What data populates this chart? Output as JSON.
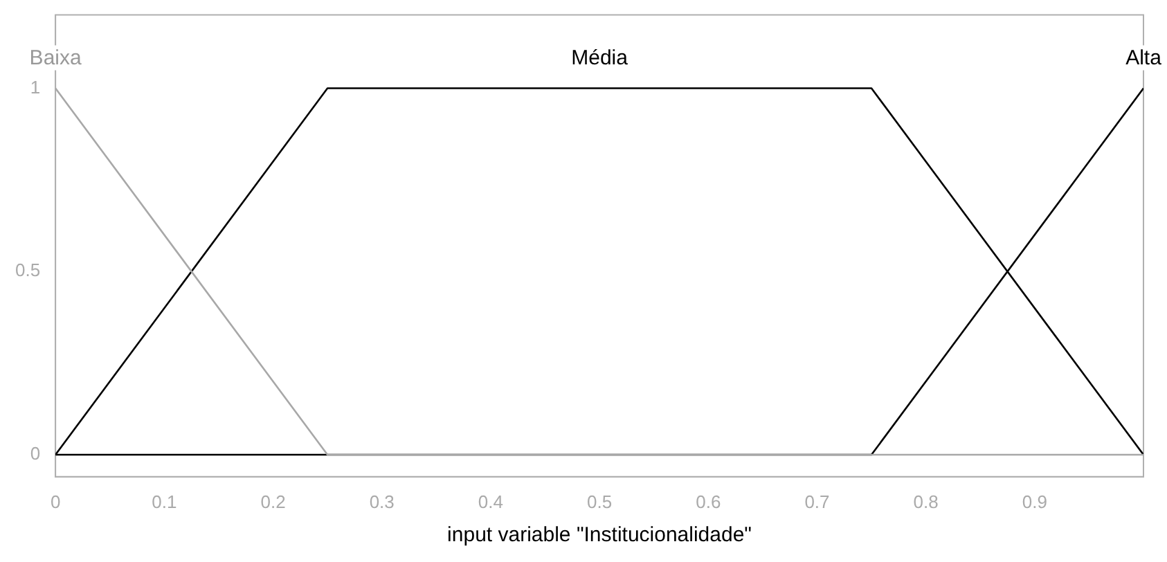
{
  "chart_data": {
    "type": "line",
    "xlabel": "input variable \"Institucionalidade\"",
    "xlim": [
      0,
      1
    ],
    "xticks": [
      0,
      0.1,
      0.2,
      0.3,
      0.4,
      0.5,
      0.6,
      0.7,
      0.8,
      0.9
    ],
    "ylim": [
      -0.06,
      1.2
    ],
    "yticks": [
      0,
      0.5,
      1
    ],
    "grid": false,
    "legend": false,
    "marker": "none",
    "line_style": "solid",
    "series": [
      {
        "name": "Baixa",
        "color": "#a8a8a8",
        "x": [
          0,
          0.25,
          1
        ],
        "values": [
          1,
          0,
          0
        ]
      },
      {
        "name": "Média",
        "color": "#000000",
        "x": [
          0,
          0.25,
          0.75,
          1
        ],
        "values": [
          0,
          1,
          1,
          0
        ]
      },
      {
        "name": "Alta",
        "color": "#000000",
        "x": [
          0,
          0.75,
          1
        ],
        "values": [
          0,
          0,
          1
        ]
      }
    ]
  }
}
